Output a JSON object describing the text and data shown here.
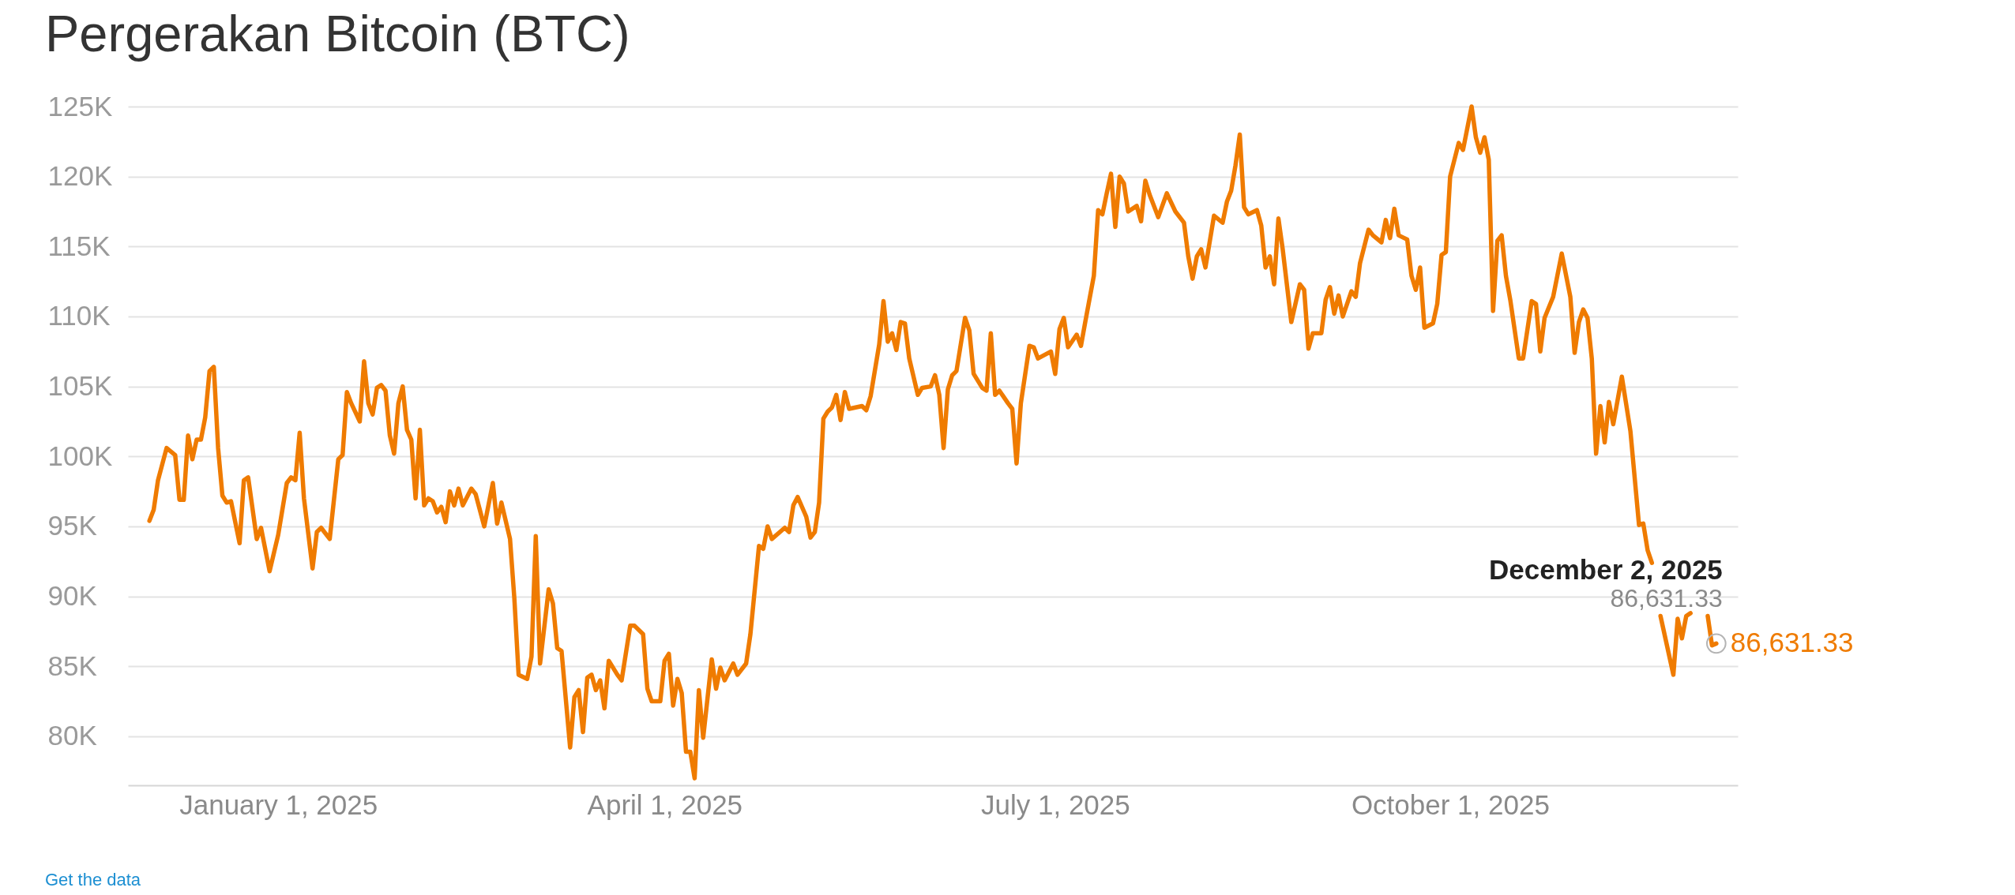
{
  "chart_data": {
    "type": "line",
    "title": "Pergerakan Bitcoin (BTC)",
    "x": [
      "2024-12-02",
      "2024-12-03",
      "2024-12-04",
      "2024-12-06",
      "2024-12-08",
      "2024-12-09",
      "2024-12-10",
      "2024-12-11",
      "2024-12-12",
      "2024-12-13",
      "2024-12-14",
      "2024-12-15",
      "2024-12-16",
      "2024-12-17",
      "2024-12-18",
      "2024-12-19",
      "2024-12-20",
      "2024-12-21",
      "2024-12-23",
      "2024-12-24",
      "2024-12-25",
      "2024-12-27",
      "2024-12-28",
      "2024-12-30",
      "2025-01-01",
      "2025-01-03",
      "2025-01-04",
      "2025-01-05",
      "2025-01-06",
      "2025-01-07",
      "2025-01-09",
      "2025-01-10",
      "2025-01-11",
      "2025-01-13",
      "2025-01-15",
      "2025-01-16",
      "2025-01-17",
      "2025-01-18",
      "2025-01-20",
      "2025-01-21",
      "2025-01-22",
      "2025-01-23",
      "2025-01-24",
      "2025-01-25",
      "2025-01-26",
      "2025-01-27",
      "2025-01-28",
      "2025-01-29",
      "2025-01-30",
      "2025-01-31",
      "2025-02-01",
      "2025-02-02",
      "2025-02-03",
      "2025-02-04",
      "2025-02-05",
      "2025-02-06",
      "2025-02-07",
      "2025-02-08",
      "2025-02-09",
      "2025-02-10",
      "2025-02-11",
      "2025-02-12",
      "2025-02-13",
      "2025-02-15",
      "2025-02-16",
      "2025-02-18",
      "2025-02-20",
      "2025-02-21",
      "2025-02-22",
      "2025-02-24",
      "2025-02-25",
      "2025-02-26",
      "2025-02-28",
      "2025-03-01",
      "2025-03-02",
      "2025-03-03",
      "2025-03-05",
      "2025-03-06",
      "2025-03-07",
      "2025-03-08",
      "2025-03-10",
      "2025-03-11",
      "2025-03-12",
      "2025-03-13",
      "2025-03-14",
      "2025-03-15",
      "2025-03-16",
      "2025-03-17",
      "2025-03-18",
      "2025-03-19",
      "2025-03-21",
      "2025-03-22",
      "2025-03-24",
      "2025-03-25",
      "2025-03-27",
      "2025-03-28",
      "2025-03-29",
      "2025-03-31",
      "2025-04-01",
      "2025-04-02",
      "2025-04-03",
      "2025-04-04",
      "2025-04-05",
      "2025-04-06",
      "2025-04-07",
      "2025-04-08",
      "2025-04-09",
      "2025-04-10",
      "2025-04-12",
      "2025-04-13",
      "2025-04-14",
      "2025-04-15",
      "2025-04-17",
      "2025-04-18",
      "2025-04-20",
      "2025-04-21",
      "2025-04-23",
      "2025-04-24",
      "2025-04-25",
      "2025-04-26",
      "2025-04-29",
      "2025-04-30",
      "2025-05-01",
      "2025-05-02",
      "2025-05-04",
      "2025-05-05",
      "2025-05-06",
      "2025-05-07",
      "2025-05-08",
      "2025-05-09",
      "2025-05-10",
      "2025-05-11",
      "2025-05-12",
      "2025-05-13",
      "2025-05-14",
      "2025-05-17",
      "2025-05-18",
      "2025-05-19",
      "2025-05-21",
      "2025-05-22",
      "2025-05-23",
      "2025-05-24",
      "2025-05-25",
      "2025-05-26",
      "2025-05-27",
      "2025-05-28",
      "2025-05-30",
      "2025-05-31",
      "2025-06-02",
      "2025-06-03",
      "2025-06-04",
      "2025-06-05",
      "2025-06-06",
      "2025-06-07",
      "2025-06-08",
      "2025-06-10",
      "2025-06-11",
      "2025-06-12",
      "2025-06-14",
      "2025-06-15",
      "2025-06-16",
      "2025-06-17",
      "2025-06-18",
      "2025-06-20",
      "2025-06-21",
      "2025-06-22",
      "2025-06-23",
      "2025-06-25",
      "2025-06-26",
      "2025-06-27",
      "2025-06-30",
      "2025-07-01",
      "2025-07-02",
      "2025-07-03",
      "2025-07-04",
      "2025-07-06",
      "2025-07-07",
      "2025-07-08",
      "2025-07-10",
      "2025-07-11",
      "2025-07-12",
      "2025-07-13",
      "2025-07-14",
      "2025-07-15",
      "2025-07-16",
      "2025-07-17",
      "2025-07-18",
      "2025-07-20",
      "2025-07-21",
      "2025-07-22",
      "2025-07-23",
      "2025-07-25",
      "2025-07-27",
      "2025-07-29",
      "2025-07-31",
      "2025-08-01",
      "2025-08-02",
      "2025-08-03",
      "2025-08-04",
      "2025-08-05",
      "2025-08-07",
      "2025-08-09",
      "2025-08-10",
      "2025-08-11",
      "2025-08-12",
      "2025-08-13",
      "2025-08-14",
      "2025-08-15",
      "2025-08-17",
      "2025-08-18",
      "2025-08-19",
      "2025-08-20",
      "2025-08-21",
      "2025-08-22",
      "2025-08-23",
      "2025-08-25",
      "2025-08-27",
      "2025-08-28",
      "2025-08-29",
      "2025-08-30",
      "2025-09-01",
      "2025-09-02",
      "2025-09-03",
      "2025-09-04",
      "2025-09-05",
      "2025-09-06",
      "2025-09-08",
      "2025-09-09",
      "2025-09-10",
      "2025-09-12",
      "2025-09-13",
      "2025-09-15",
      "2025-09-16",
      "2025-09-17",
      "2025-09-18",
      "2025-09-19",
      "2025-09-21",
      "2025-09-22",
      "2025-09-23",
      "2025-09-24",
      "2025-09-25",
      "2025-09-27",
      "2025-09-28",
      "2025-09-29",
      "2025-09-30",
      "2025-10-01",
      "2025-10-03",
      "2025-10-04",
      "2025-10-06",
      "2025-10-07",
      "2025-10-08",
      "2025-10-09",
      "2025-10-10",
      "2025-10-11",
      "2025-10-12",
      "2025-10-13",
      "2025-10-14",
      "2025-10-15",
      "2025-10-17",
      "2025-10-18",
      "2025-10-20",
      "2025-10-21",
      "2025-10-22",
      "2025-10-23",
      "2025-10-25",
      "2025-10-27",
      "2025-10-29",
      "2025-10-30",
      "2025-10-31",
      "2025-11-01",
      "2025-11-02",
      "2025-11-03",
      "2025-11-04",
      "2025-11-05",
      "2025-11-06",
      "2025-11-07",
      "2025-11-08",
      "2025-11-10",
      "2025-11-12",
      "2025-11-14",
      "2025-11-15",
      "2025-11-16",
      "2025-11-17",
      "2025-11-18",
      "2025-11-19",
      "2025-11-22",
      "2025-11-23",
      "2025-11-24",
      "2025-11-25",
      "2025-11-26",
      "2025-11-27",
      "2025-11-30",
      "2025-12-01",
      "2025-12-02"
    ],
    "series": [
      {
        "color": "#ef7b00",
        "values": [
          95400,
          96200,
          98300,
          100600,
          100100,
          96900,
          96900,
          101500,
          99800,
          101200,
          101200,
          102800,
          106100,
          106400,
          100600,
          97200,
          96700,
          96800,
          93800,
          98300,
          98500,
          94100,
          94900,
          91800,
          94400,
          98100,
          98500,
          98300,
          101700,
          97000,
          92000,
          94600,
          94900,
          94100,
          99800,
          100100,
          104600,
          103800,
          102500,
          106800,
          103800,
          103000,
          104900,
          105100,
          104700,
          101500,
          100200,
          103800,
          105000,
          101900,
          101200,
          97000,
          101900,
          96500,
          97000,
          96800,
          96000,
          96400,
          95300,
          97500,
          96500,
          97700,
          96500,
          97700,
          97300,
          95000,
          98100,
          95200,
          96700,
          94100,
          89900,
          84400,
          84100,
          85700,
          94300,
          85200,
          90500,
          89500,
          86300,
          86100,
          79200,
          82800,
          83300,
          80300,
          84200,
          84400,
          83300,
          84000,
          82000,
          85400,
          84400,
          84000,
          87900,
          87900,
          87300,
          83400,
          82500,
          82500,
          85400,
          85900,
          82200,
          84100,
          83100,
          78900,
          78900,
          77000,
          83300,
          79900,
          85500,
          83400,
          84900,
          84000,
          85200,
          84400,
          85200,
          87300,
          93600,
          93400,
          95000,
          94100,
          94900,
          94600,
          96500,
          97100,
          95700,
          94200,
          94600,
          96700,
          102700,
          103200,
          103500,
          104400,
          102600,
          104600,
          103400,
          103600,
          103300,
          104300,
          108000,
          111100,
          108200,
          108800,
          107600,
          109600,
          109500,
          107000,
          104400,
          104900,
          105000,
          105800,
          104400,
          100600,
          104800,
          105800,
          106100,
          109900,
          109000,
          105900,
          104900,
          104700,
          108800,
          104400,
          104700,
          103800,
          103400,
          99500,
          103800,
          107900,
          107800,
          107000,
          107500,
          105900,
          109100,
          109900,
          107800,
          108700,
          107900,
          109600,
          112900,
          117600,
          117300,
          118800,
          120200,
          116400,
          120000,
          119500,
          117500,
          117900,
          116800,
          119700,
          118700,
          117100,
          118800,
          117500,
          116700,
          114300,
          112700,
          114300,
          114800,
          113500,
          117200,
          116700,
          118200,
          119000,
          120800,
          123000,
          117800,
          117300,
          117600,
          116500,
          113500,
          114300,
          112300,
          117000,
          114800,
          109600,
          112300,
          111900,
          107700,
          108800,
          108800,
          111200,
          112100,
          110200,
          111500,
          110000,
          111800,
          111400,
          113800,
          116200,
          115800,
          115300,
          116900,
          115600,
          117700,
          115800,
          115500,
          112900,
          111900,
          113500,
          109200,
          109500,
          110900,
          114400,
          114600,
          120000,
          122400,
          121900,
          125000,
          122800,
          121700,
          122800,
          121200,
          110400,
          115400,
          115800,
          112900,
          111200,
          107000,
          107000,
          111100,
          110900,
          107500,
          109900,
          111400,
          114500,
          111400,
          107400,
          109600,
          110500,
          109900,
          107000,
          100200,
          103600,
          101000,
          103900,
          102300,
          105700,
          101800,
          95100,
          95200,
          93300,
          92400,
          null,
          88600,
          84400,
          88400,
          87000,
          88600,
          88800,
          null,
          88600,
          86500,
          86631.33
        ],
        "value_labels": [
          null,
          null,
          null,
          null,
          null,
          null,
          null,
          null,
          null,
          null,
          null,
          null,
          null,
          null,
          null,
          null,
          null,
          null,
          null,
          null,
          null,
          null,
          null,
          null,
          null,
          null,
          null,
          null,
          null,
          null,
          null,
          null,
          null,
          null,
          null,
          null,
          null,
          null,
          null,
          null,
          null,
          null,
          null,
          null,
          null,
          null,
          null,
          null,
          null,
          null,
          null,
          null,
          null,
          null,
          null,
          null,
          null,
          null,
          null,
          null,
          null,
          null,
          null,
          null,
          null,
          null,
          null,
          null,
          null,
          null,
          null,
          null,
          null,
          null,
          null,
          null,
          null,
          null,
          null,
          null,
          null,
          null,
          null,
          null,
          null,
          null,
          null,
          null,
          null,
          null,
          null,
          null,
          null,
          null,
          null,
          null,
          null,
          null,
          null,
          null,
          null,
          null,
          null,
          null,
          null,
          null,
          null,
          null,
          null,
          null,
          null,
          null,
          null,
          null,
          null,
          null,
          null,
          null,
          null,
          null,
          null,
          null,
          null,
          null,
          null,
          null,
          null,
          null,
          null,
          null,
          null,
          null,
          null,
          null,
          null,
          null,
          null,
          null,
          null,
          null,
          null,
          null,
          null,
          null,
          null,
          null,
          null,
          null,
          null,
          null,
          null,
          null,
          null,
          null,
          null,
          null,
          null,
          null,
          null,
          null,
          null,
          null,
          null,
          null,
          null,
          null,
          null,
          null,
          null,
          null,
          null,
          null,
          null,
          null,
          null,
          null,
          null,
          null,
          null,
          null,
          null,
          null,
          null,
          null,
          null,
          null,
          null,
          null,
          null,
          null,
          null,
          null,
          null,
          null,
          null,
          null,
          null,
          null,
          null,
          null,
          null,
          null,
          null,
          null,
          null,
          null,
          null,
          null,
          null,
          null,
          null,
          null,
          null,
          null,
          null,
          null,
          null,
          null,
          null,
          null,
          null,
          null,
          null,
          null,
          null,
          null,
          null,
          null,
          null,
          null,
          null,
          null,
          null,
          null,
          null,
          null,
          null,
          null,
          null,
          null,
          null,
          null,
          null,
          null,
          null,
          null,
          null,
          null,
          null,
          null,
          null,
          null,
          null,
          null,
          null,
          null,
          null,
          null,
          null,
          null,
          null,
          null,
          null,
          null,
          null,
          null,
          null,
          null,
          null,
          null,
          null,
          null,
          null,
          null,
          null,
          null,
          null,
          null,
          null,
          null,
          null,
          null,
          null,
          null,
          null,
          null,
          null,
          null,
          null,
          null,
          null,
          null,
          null,
          "86,631.33"
        ]
      }
    ],
    "xlim": [
      "2024-11-27",
      "2025-12-07"
    ],
    "xticks": [
      {
        "value": "2025-01-01",
        "label": "January 1, 2025"
      },
      {
        "value": "2025-04-01",
        "label": "April 1, 2025"
      },
      {
        "value": "2025-07-01",
        "label": "July 1, 2025"
      },
      {
        "value": "2025-10-01",
        "label": "October 1, 2025"
      }
    ],
    "ylim": [
      76500,
      125000
    ],
    "yticks": [
      {
        "value": 80000,
        "label": "80K"
      },
      {
        "value": 85000,
        "label": "85K"
      },
      {
        "value": 90000,
        "label": "90K"
      },
      {
        "value": 95000,
        "label": "95K"
      },
      {
        "value": 100000,
        "label": "100K"
      },
      {
        "value": 105000,
        "label": "105K"
      },
      {
        "value": 110000,
        "label": "110K"
      },
      {
        "value": 115000,
        "label": "115K"
      },
      {
        "value": 120000,
        "label": "120K"
      },
      {
        "value": 125000,
        "label": "125K"
      }
    ],
    "grid": "y",
    "annotations": [
      {
        "text": "December 2, 2025",
        "x": "2025-12-02",
        "y": 86631.33
      },
      {
        "text": "86,631.33",
        "x": "2025-12-02",
        "y": 86631.33
      },
      "Get the data"
    ]
  }
}
